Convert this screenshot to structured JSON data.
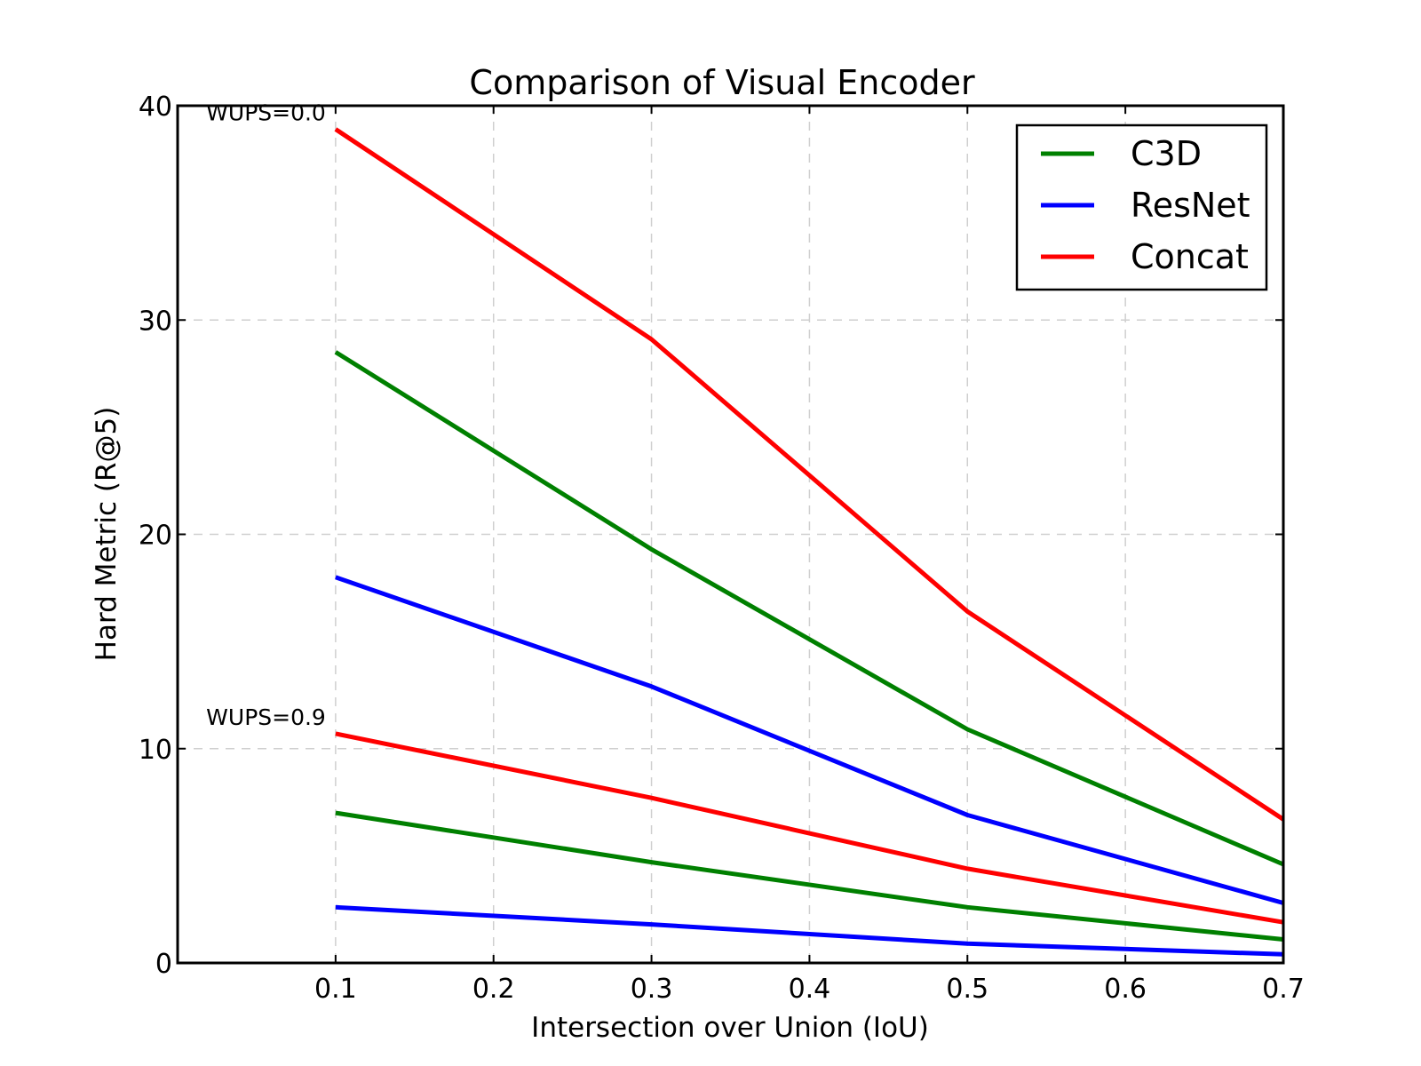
{
  "chart_data": {
    "type": "line",
    "title": "Comparison of Visual Encoder",
    "xlabel": "Intersection over Union (IoU)",
    "ylabel": "Hard Metric (R@5)",
    "xlim": [
      0.0,
      0.7
    ],
    "ylim": [
      0,
      40
    ],
    "xticks": [
      0.1,
      0.2,
      0.3,
      0.4,
      0.5,
      0.6,
      0.7
    ],
    "yticks": [
      0,
      10,
      20,
      30,
      40
    ],
    "x": [
      0.1,
      0.3,
      0.5,
      0.7
    ],
    "grid": true,
    "legend_position": "top-right",
    "groups": [
      {
        "label": "WUPS=0.0",
        "series": [
          {
            "name": "C3D",
            "color": "#008000",
            "values": [
              28.5,
              19.3,
              10.9,
              4.6
            ]
          },
          {
            "name": "ResNet",
            "color": "#0000ff",
            "values": [
              18.0,
              12.9,
              6.9,
              2.8
            ]
          },
          {
            "name": "Concat",
            "color": "#ff0000",
            "values": [
              38.9,
              29.1,
              16.4,
              6.7
            ]
          }
        ]
      },
      {
        "label": "WUPS=0.9",
        "series": [
          {
            "name": "C3D",
            "color": "#008000",
            "values": [
              7.0,
              4.7,
              2.6,
              1.1
            ]
          },
          {
            "name": "ResNet",
            "color": "#0000ff",
            "values": [
              2.6,
              1.8,
              0.9,
              0.4
            ]
          },
          {
            "name": "Concat",
            "color": "#ff0000",
            "values": [
              10.7,
              7.7,
              4.4,
              1.9
            ]
          }
        ]
      }
    ],
    "legend": [
      {
        "name": "C3D",
        "color": "#008000"
      },
      {
        "name": "ResNet",
        "color": "#0000ff"
      },
      {
        "name": "Concat",
        "color": "#ff0000"
      }
    ]
  }
}
